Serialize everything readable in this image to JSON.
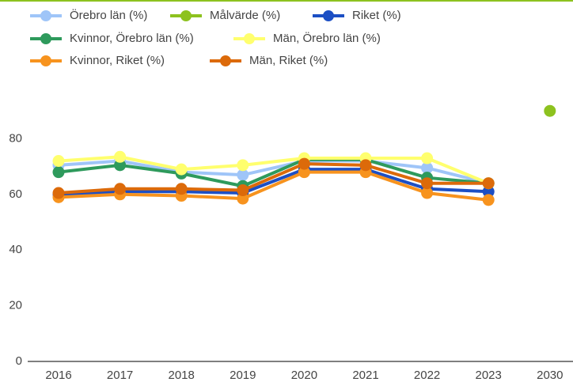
{
  "chart_data": {
    "type": "line",
    "categories": [
      "2016",
      "2017",
      "2018",
      "2019",
      "2020",
      "2021",
      "2022",
      "2023",
      "2030"
    ],
    "series": [
      {
        "name": "Örebro län (%)",
        "color": "#9fc5f8",
        "values": [
          70.5,
          72,
          68,
          67,
          72,
          72,
          69.5,
          64,
          null
        ]
      },
      {
        "name": "Målvärde (%)",
        "color": "#8dc21f",
        "values": [
          null,
          null,
          null,
          null,
          null,
          null,
          null,
          null,
          90
        ]
      },
      {
        "name": "Riket (%)",
        "color": "#1c4fc4",
        "values": [
          60,
          61,
          61,
          60.5,
          69,
          69,
          62,
          61,
          null
        ]
      },
      {
        "name": "Kvinnor, Örebro län (%)",
        "color": "#2e9a5c",
        "values": [
          68,
          70.5,
          67.5,
          63,
          72.5,
          72.5,
          66,
          64,
          null
        ]
      },
      {
        "name": "Män, Örebro län (%)",
        "color": "#ffff6e",
        "values": [
          72,
          73.5,
          69,
          70.5,
          73,
          73,
          73,
          64,
          null
        ]
      },
      {
        "name": "Kvinnor, Riket (%)",
        "color": "#f7931e",
        "values": [
          59,
          60,
          59.5,
          58.5,
          68,
          68,
          60.5,
          58,
          null
        ]
      },
      {
        "name": "Män, Riket (%)",
        "color": "#dc6a0a",
        "values": [
          60.5,
          62,
          62,
          61.5,
          71,
          70.5,
          64,
          64,
          null
        ]
      }
    ],
    "ylim": [
      0,
      100
    ],
    "yticks": [
      0,
      20,
      40,
      60,
      80
    ],
    "grid": false
  }
}
